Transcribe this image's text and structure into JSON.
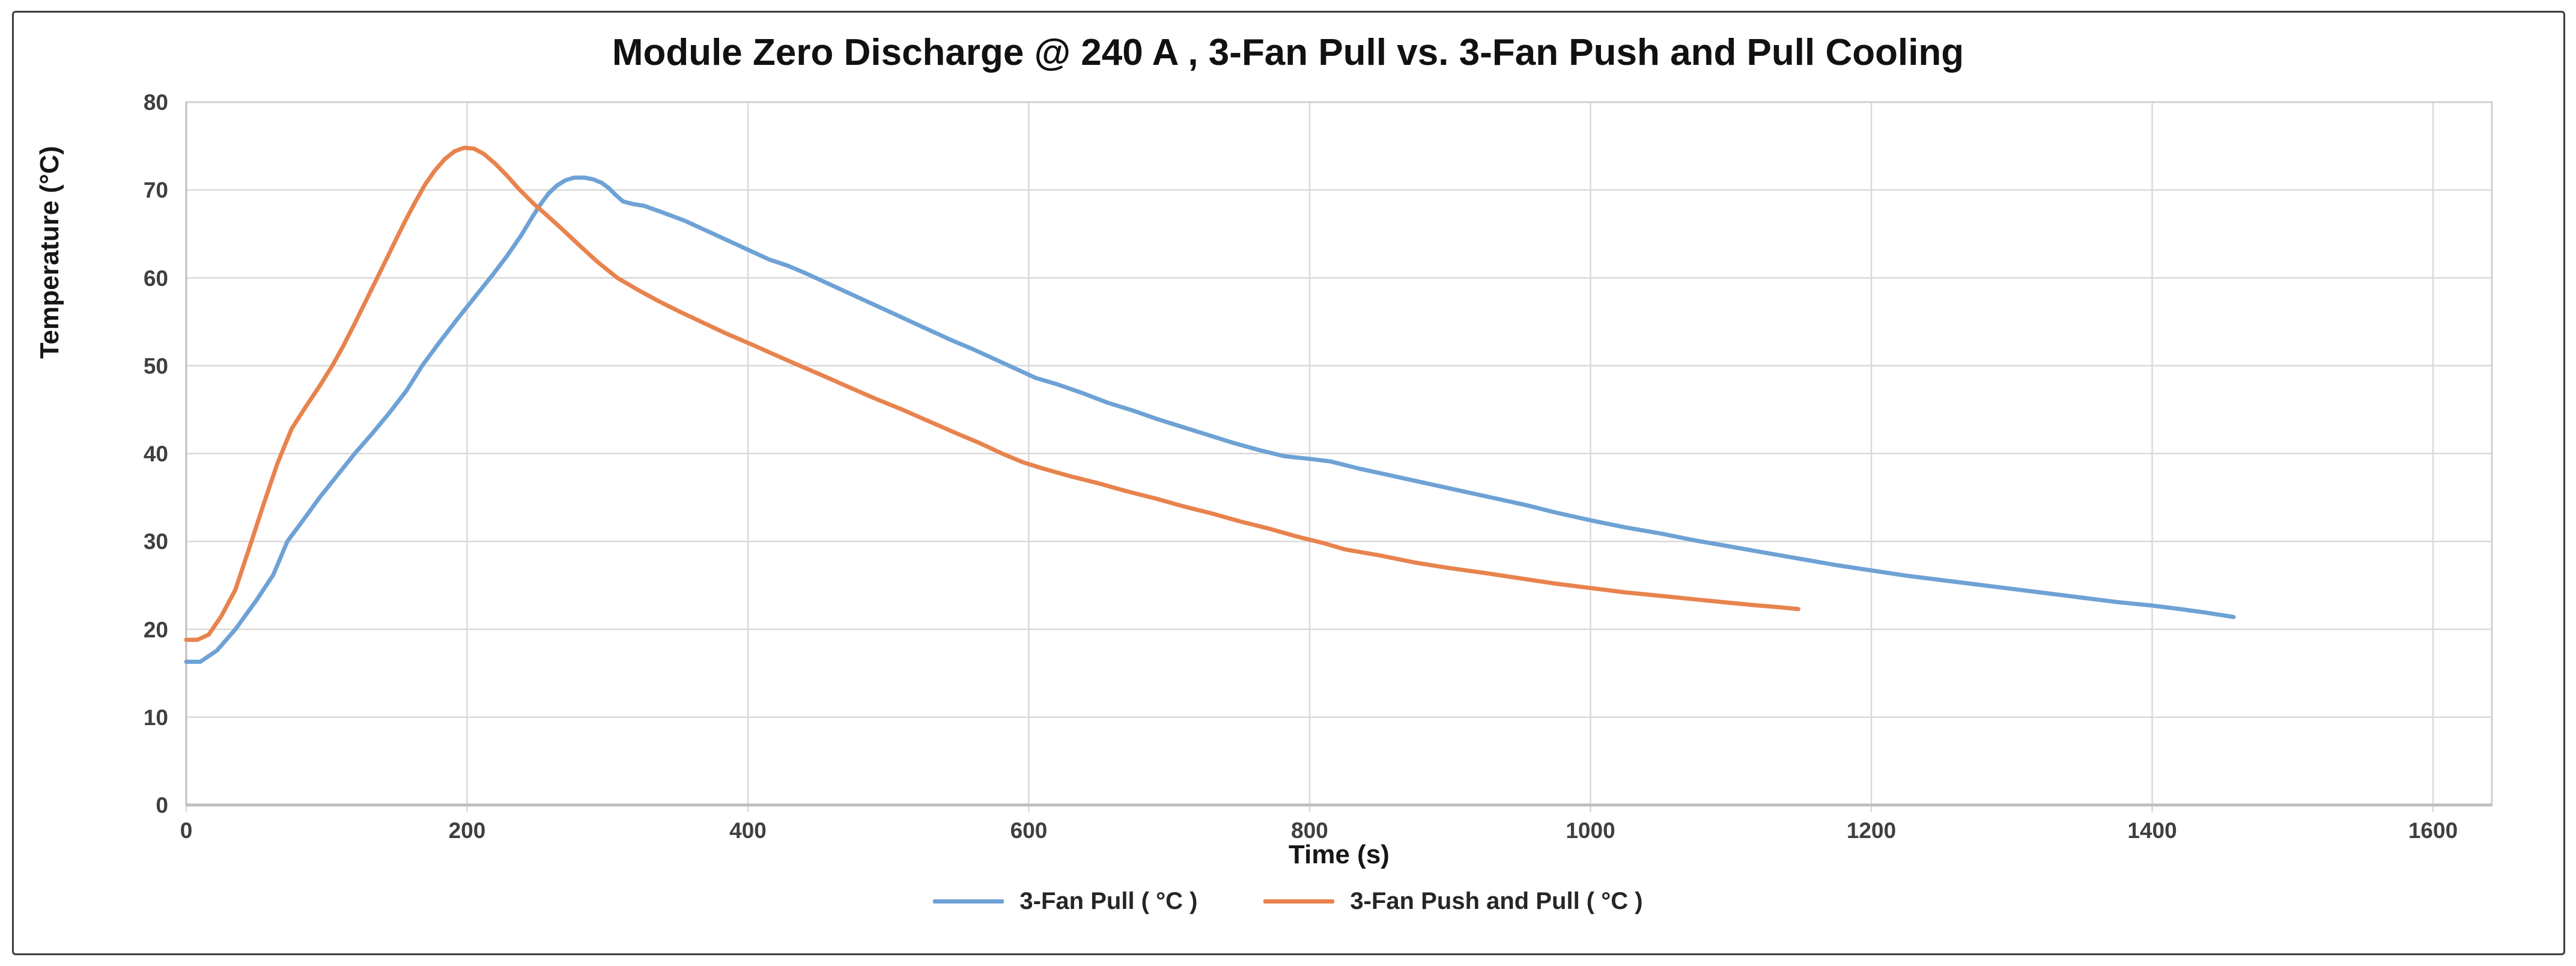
{
  "figure": {
    "title": "Module Zero Discharge @ 240 A , 3-Fan Pull vs. 3-Fan Push and Pull Cooling",
    "x_axis_title": "Time (s)",
    "y_axis_title": "Temperature (°C)"
  },
  "chart_data": {
    "type": "line",
    "title": "Module Zero Discharge @ 240 A , 3-Fan Pull vs. 3-Fan Push and Pull Cooling",
    "xlabel": "Time (s)",
    "ylabel": "Temperature (°C)",
    "xlim": [
      0,
      1600
    ],
    "ylim": [
      0,
      80
    ],
    "x_ticks": [
      0,
      200,
      400,
      600,
      800,
      1000,
      1200,
      1400,
      1600
    ],
    "y_ticks": [
      0,
      10,
      20,
      30,
      40,
      50,
      60,
      70,
      80
    ],
    "grid": true,
    "legend_position": "bottom",
    "colors": {
      "grid": "#d9d9d9",
      "axis": "#bfbfbf",
      "plot_border": "#d0d0d0",
      "blue_series": "#6ea2d5",
      "orange_series": "#e8834e"
    },
    "series": [
      {
        "name": "3-Fan Pull ( °C )",
        "color": "#6ea2d5",
        "points": [
          [
            0,
            16.3
          ],
          [
            10,
            16.3
          ],
          [
            22,
            17.6
          ],
          [
            35,
            20.0
          ],
          [
            50,
            23.3
          ],
          [
            62,
            26.2
          ],
          [
            72,
            30.0
          ],
          [
            85,
            32.8
          ],
          [
            95,
            35.0
          ],
          [
            108,
            37.6
          ],
          [
            120,
            40.0
          ],
          [
            132,
            42.2
          ],
          [
            145,
            44.7
          ],
          [
            157,
            47.2
          ],
          [
            168,
            50.0
          ],
          [
            180,
            52.6
          ],
          [
            192,
            55.1
          ],
          [
            205,
            57.7
          ],
          [
            218,
            60.3
          ],
          [
            228,
            62.4
          ],
          [
            238,
            64.7
          ],
          [
            246,
            66.8
          ],
          [
            252,
            68.3
          ],
          [
            258,
            69.6
          ],
          [
            264,
            70.5
          ],
          [
            270,
            71.1
          ],
          [
            276,
            71.4
          ],
          [
            284,
            71.4
          ],
          [
            290,
            71.2
          ],
          [
            296,
            70.8
          ],
          [
            301,
            70.2
          ],
          [
            306,
            69.4
          ],
          [
            311,
            68.7
          ],
          [
            318,
            68.4
          ],
          [
            326,
            68.2
          ],
          [
            340,
            67.4
          ],
          [
            355,
            66.5
          ],
          [
            370,
            65.4
          ],
          [
            385,
            64.3
          ],
          [
            400,
            63.2
          ],
          [
            415,
            62.1
          ],
          [
            428,
            61.4
          ],
          [
            440,
            60.6
          ],
          [
            455,
            59.5
          ],
          [
            470,
            58.4
          ],
          [
            485,
            57.3
          ],
          [
            500,
            56.2
          ],
          [
            515,
            55.1
          ],
          [
            530,
            54.0
          ],
          [
            545,
            52.9
          ],
          [
            560,
            51.9
          ],
          [
            575,
            50.8
          ],
          [
            590,
            49.7
          ],
          [
            605,
            48.6
          ],
          [
            620,
            47.9
          ],
          [
            638,
            46.9
          ],
          [
            656,
            45.8
          ],
          [
            674,
            44.9
          ],
          [
            692,
            43.9
          ],
          [
            710,
            43.0
          ],
          [
            728,
            42.1
          ],
          [
            746,
            41.2
          ],
          [
            764,
            40.4
          ],
          [
            782,
            39.7
          ],
          [
            800,
            39.4
          ],
          [
            815,
            39.1
          ],
          [
            835,
            38.3
          ],
          [
            855,
            37.6
          ],
          [
            875,
            36.9
          ],
          [
            895,
            36.2
          ],
          [
            915,
            35.5
          ],
          [
            935,
            34.8
          ],
          [
            955,
            34.1
          ],
          [
            975,
            33.3
          ],
          [
            1000,
            32.4
          ],
          [
            1025,
            31.6
          ],
          [
            1050,
            30.9
          ],
          [
            1075,
            30.1
          ],
          [
            1100,
            29.4
          ],
          [
            1125,
            28.7
          ],
          [
            1150,
            28.0
          ],
          [
            1175,
            27.3
          ],
          [
            1200,
            26.7
          ],
          [
            1225,
            26.1
          ],
          [
            1250,
            25.6
          ],
          [
            1275,
            25.1
          ],
          [
            1300,
            24.6
          ],
          [
            1325,
            24.1
          ],
          [
            1350,
            23.6
          ],
          [
            1375,
            23.1
          ],
          [
            1400,
            22.7
          ],
          [
            1420,
            22.3
          ],
          [
            1438,
            21.9
          ],
          [
            1450,
            21.6
          ],
          [
            1458,
            21.4
          ]
        ]
      },
      {
        "name": "3-Fan Push and Pull ( °C )",
        "color": "#e8834e",
        "points": [
          [
            0,
            18.8
          ],
          [
            8,
            18.8
          ],
          [
            16,
            19.4
          ],
          [
            25,
            21.5
          ],
          [
            35,
            24.5
          ],
          [
            45,
            29.3
          ],
          [
            55,
            34.2
          ],
          [
            65,
            38.9
          ],
          [
            75,
            42.8
          ],
          [
            85,
            45.3
          ],
          [
            95,
            47.7
          ],
          [
            104,
            50.0
          ],
          [
            112,
            52.3
          ],
          [
            120,
            54.8
          ],
          [
            128,
            57.4
          ],
          [
            136,
            60.0
          ],
          [
            144,
            62.6
          ],
          [
            151,
            64.9
          ],
          [
            157,
            66.8
          ],
          [
            163,
            68.6
          ],
          [
            170,
            70.6
          ],
          [
            177,
            72.2
          ],
          [
            184,
            73.5
          ],
          [
            191,
            74.4
          ],
          [
            198,
            74.8
          ],
          [
            205,
            74.7
          ],
          [
            212,
            74.1
          ],
          [
            220,
            73.0
          ],
          [
            228,
            71.7
          ],
          [
            237,
            70.1
          ],
          [
            247,
            68.5
          ],
          [
            257,
            67.1
          ],
          [
            268,
            65.5
          ],
          [
            280,
            63.7
          ],
          [
            293,
            61.8
          ],
          [
            307,
            60.0
          ],
          [
            322,
            58.6
          ],
          [
            337,
            57.3
          ],
          [
            352,
            56.1
          ],
          [
            368,
            54.9
          ],
          [
            384,
            53.7
          ],
          [
            400,
            52.6
          ],
          [
            417,
            51.4
          ],
          [
            434,
            50.2
          ],
          [
            450,
            49.1
          ],
          [
            470,
            47.7
          ],
          [
            490,
            46.3
          ],
          [
            510,
            45.0
          ],
          [
            530,
            43.6
          ],
          [
            550,
            42.2
          ],
          [
            565,
            41.2
          ],
          [
            581,
            40.0
          ],
          [
            596,
            39.0
          ],
          [
            610,
            38.3
          ],
          [
            630,
            37.4
          ],
          [
            650,
            36.6
          ],
          [
            670,
            35.7
          ],
          [
            690,
            34.9
          ],
          [
            710,
            34.0
          ],
          [
            730,
            33.2
          ],
          [
            750,
            32.3
          ],
          [
            770,
            31.5
          ],
          [
            790,
            30.6
          ],
          [
            810,
            29.8
          ],
          [
            825,
            29.1
          ],
          [
            850,
            28.4
          ],
          [
            875,
            27.6
          ],
          [
            898,
            27.0
          ],
          [
            925,
            26.4
          ],
          [
            950,
            25.8
          ],
          [
            975,
            25.2
          ],
          [
            1000,
            24.7
          ],
          [
            1025,
            24.2
          ],
          [
            1050,
            23.8
          ],
          [
            1075,
            23.4
          ],
          [
            1100,
            23.0
          ],
          [
            1120,
            22.7
          ],
          [
            1135,
            22.5
          ],
          [
            1148,
            22.3
          ]
        ]
      }
    ]
  }
}
